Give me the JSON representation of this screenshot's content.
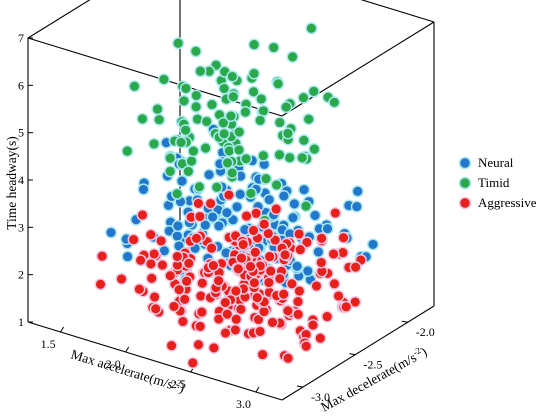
{
  "chart_data": {
    "type": "scatter",
    "projection": "3d",
    "title": "",
    "xlabel": "Max accelerate(m/s",
    "xlabel_unit_sup": "-2",
    "xlabel_close": ")",
    "ylabel": "Max decelerate(m/s",
    "ylabel_unit_sup": "-2",
    "ylabel_close": ")",
    "zlabel": "Time headway(s)",
    "xlim": [
      1.25,
      3.2
    ],
    "ylim": [
      -3.2,
      -1.75
    ],
    "zlim": [
      1,
      7
    ],
    "xticks": [
      "1.5",
      "2.0",
      "2.5",
      "3.0"
    ],
    "xtick_values": [
      1.5,
      2.0,
      2.5,
      3.0
    ],
    "yticks": [
      "-3.0",
      "-2.5",
      "-2.0"
    ],
    "ytick_values": [
      -3.0,
      -2.5,
      -2.0
    ],
    "zticks": [
      "1",
      "2",
      "3",
      "4",
      "5",
      "6",
      "7"
    ],
    "ztick_values": [
      1,
      2,
      3,
      4,
      5,
      6,
      7
    ],
    "grid": false,
    "legend_position": "right",
    "series": [
      {
        "name": "Neural",
        "color": "#2277cc",
        "cluster": {
          "n": 170,
          "x_range": [
            1.5,
            3.1
          ],
          "y_range": [
            -3.1,
            -2.0
          ],
          "z_range": [
            2.4,
            4.8
          ],
          "center": [
            2.35,
            -2.55,
            3.05
          ]
        }
      },
      {
        "name": "Timid",
        "color": "#2aa84a",
        "cluster": {
          "n": 110,
          "x_range": [
            1.8,
            3.0
          ],
          "y_range": [
            -3.0,
            -1.9
          ],
          "z_range": [
            3.2,
            7.0
          ],
          "center": [
            2.3,
            -2.5,
            4.2
          ]
        }
      },
      {
        "name": "Aggressive",
        "color": "#e8201c",
        "cluster": {
          "n": 230,
          "x_range": [
            1.6,
            3.1
          ],
          "y_range": [
            -3.1,
            -1.95
          ],
          "z_range": [
            1.0,
            3.1
          ],
          "center": [
            2.4,
            -2.6,
            2.0
          ]
        }
      }
    ]
  }
}
